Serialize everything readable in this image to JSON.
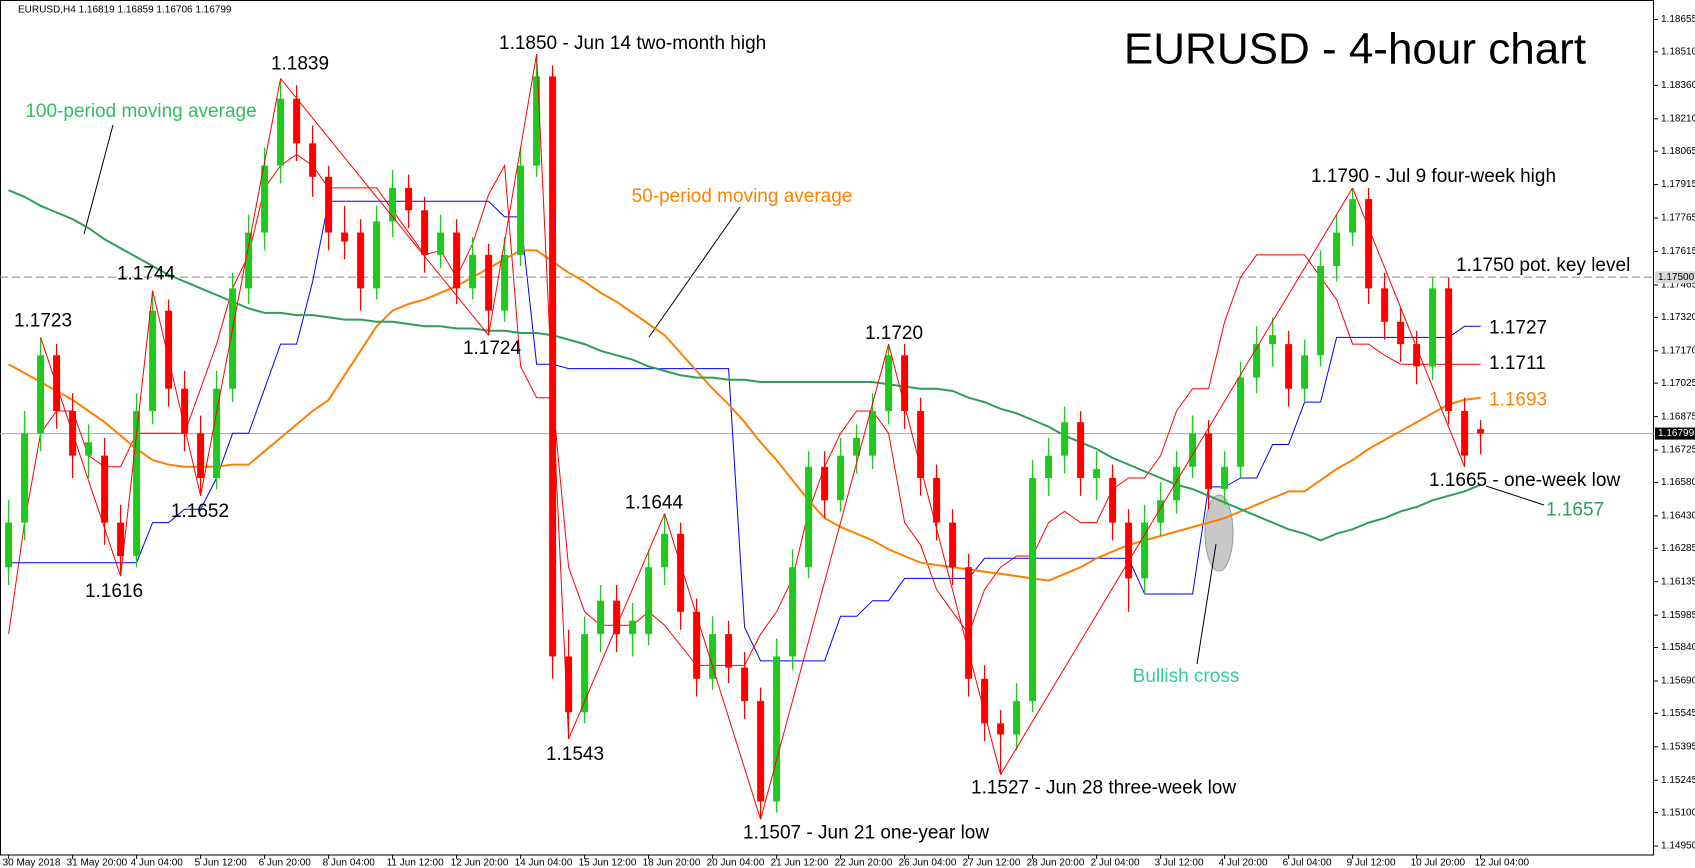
{
  "chart_data": {
    "type": "candlestick",
    "title": "EURUSD - 4-hour chart",
    "subtitle": "EURUSD,H4 1.16819 1.16859 1.16706 1.16799",
    "up_color": "#1ec81e",
    "down_color": "#ff0000",
    "categories": [
      "30 May 2018",
      null,
      null,
      null,
      "31 May 20:00",
      null,
      null,
      null,
      "4 Jun 04:00",
      null,
      null,
      null,
      "5 Jun 12:00",
      null,
      null,
      null,
      "6 Jun 20:00",
      null,
      null,
      null,
      "8 Jun 04:00",
      null,
      null,
      null,
      "11 Jun 12:00",
      null,
      null,
      null,
      "12 Jun 20:00",
      null,
      null,
      null,
      "14 Jun 04:00",
      null,
      null,
      null,
      "15 Jun 12:00",
      null,
      null,
      null,
      "18 Jun 20:00",
      null,
      null,
      null,
      "20 Jun 04:00",
      null,
      null,
      null,
      "21 Jun 12:00",
      null,
      null,
      null,
      "22 Jun 20:00",
      null,
      null,
      null,
      "26 Jun 04:00",
      null,
      null,
      null,
      "27 Jun 12:00",
      null,
      null,
      null,
      "28 Jun 20:00",
      null,
      null,
      null,
      "2 Jul 04:00",
      null,
      null,
      null,
      "3 Jul 12:00",
      null,
      null,
      null,
      "4 Jul 20:00",
      null,
      null,
      null,
      "6 Jul 04:00",
      null,
      null,
      null,
      "9 Jul 12:00",
      null,
      null,
      null,
      "10 Jul 20:00",
      null,
      null,
      null,
      "12 Jul 04:00"
    ],
    "ohlc": [
      [
        1.162,
        1.165,
        1.1612,
        1.164
      ],
      [
        1.164,
        1.169,
        1.1632,
        1.168
      ],
      [
        1.168,
        1.1723,
        1.1672,
        1.1715
      ],
      [
        1.1715,
        1.172,
        1.1682,
        1.169
      ],
      [
        1.169,
        1.1698,
        1.166,
        1.167
      ],
      [
        1.167,
        1.1684,
        1.166,
        1.1676
      ],
      [
        1.167,
        1.1678,
        1.163,
        1.164
      ],
      [
        1.164,
        1.1648,
        1.1616,
        1.1625
      ],
      [
        1.1625,
        1.1698,
        1.162,
        1.169
      ],
      [
        1.169,
        1.1744,
        1.1684,
        1.1735
      ],
      [
        1.1735,
        1.174,
        1.1692,
        1.17
      ],
      [
        1.17,
        1.1708,
        1.1672,
        1.168
      ],
      [
        1.168,
        1.1688,
        1.1652,
        1.166
      ],
      [
        1.166,
        1.1708,
        1.1655,
        1.17
      ],
      [
        1.17,
        1.1752,
        1.1694,
        1.1745
      ],
      [
        1.1745,
        1.1778,
        1.1738,
        1.177
      ],
      [
        1.177,
        1.1808,
        1.1762,
        1.18
      ],
      [
        1.18,
        1.1839,
        1.1792,
        1.183
      ],
      [
        1.183,
        1.1836,
        1.1802,
        1.181
      ],
      [
        1.181,
        1.1818,
        1.1786,
        1.1795
      ],
      [
        1.1795,
        1.18,
        1.1762,
        1.177
      ],
      [
        1.177,
        1.1782,
        1.1758,
        1.1766
      ],
      [
        1.177,
        1.1776,
        1.1735,
        1.1745
      ],
      [
        1.1745,
        1.1782,
        1.174,
        1.1775
      ],
      [
        1.1775,
        1.1798,
        1.1768,
        1.179
      ],
      [
        1.179,
        1.1796,
        1.1772,
        1.178
      ],
      [
        1.178,
        1.1786,
        1.1752,
        1.176
      ],
      [
        1.176,
        1.1778,
        1.1754,
        1.177
      ],
      [
        1.177,
        1.1776,
        1.1738,
        1.1745
      ],
      [
        1.1745,
        1.1768,
        1.174,
        1.176
      ],
      [
        1.176,
        1.1765,
        1.1724,
        1.1735
      ],
      [
        1.1735,
        1.1768,
        1.173,
        1.176
      ],
      [
        1.176,
        1.1808,
        1.1755,
        1.18
      ],
      [
        1.18,
        1.185,
        1.1795,
        1.184
      ],
      [
        1.184,
        1.1845,
        1.157,
        1.158
      ],
      [
        1.158,
        1.1592,
        1.1543,
        1.1555
      ],
      [
        1.1555,
        1.1598,
        1.155,
        1.159
      ],
      [
        1.159,
        1.1612,
        1.1582,
        1.1605
      ],
      [
        1.1605,
        1.1612,
        1.1582,
        1.159
      ],
      [
        1.159,
        1.1604,
        1.158,
        1.1596
      ],
      [
        1.159,
        1.1628,
        1.1585,
        1.162
      ],
      [
        1.162,
        1.1644,
        1.1612,
        1.1635
      ],
      [
        1.1635,
        1.164,
        1.1592,
        1.16
      ],
      [
        1.16,
        1.1606,
        1.1562,
        1.157
      ],
      [
        1.157,
        1.1598,
        1.1565,
        1.159
      ],
      [
        1.159,
        1.1596,
        1.1568,
        1.1575
      ],
      [
        1.1575,
        1.1582,
        1.1552,
        1.156
      ],
      [
        1.156,
        1.1566,
        1.1507,
        1.1515
      ],
      [
        1.1515,
        1.1588,
        1.151,
        1.158
      ],
      [
        1.158,
        1.1628,
        1.1574,
        1.162
      ],
      [
        1.162,
        1.1672,
        1.1615,
        1.1665
      ],
      [
        1.1665,
        1.1672,
        1.1642,
        1.165
      ],
      [
        1.165,
        1.1678,
        1.1645,
        1.167
      ],
      [
        1.167,
        1.1684,
        1.1662,
        1.1678
      ],
      [
        1.167,
        1.1698,
        1.1664,
        1.169
      ],
      [
        1.169,
        1.172,
        1.1684,
        1.1715
      ],
      [
        1.1715,
        1.172,
        1.1682,
        1.169
      ],
      [
        1.169,
        1.1696,
        1.1652,
        1.166
      ],
      [
        1.166,
        1.1666,
        1.1632,
        1.164
      ],
      [
        1.164,
        1.1646,
        1.1612,
        1.162
      ],
      [
        1.162,
        1.1626,
        1.1562,
        1.157
      ],
      [
        1.157,
        1.1576,
        1.1542,
        1.155
      ],
      [
        1.155,
        1.1556,
        1.1527,
        1.1545
      ],
      [
        1.1545,
        1.1568,
        1.1538,
        1.156
      ],
      [
        1.156,
        1.1668,
        1.1555,
        1.166
      ],
      [
        1.166,
        1.1678,
        1.1652,
        1.167
      ],
      [
        1.167,
        1.1692,
        1.1662,
        1.1685
      ],
      [
        1.1685,
        1.169,
        1.1652,
        1.166
      ],
      [
        1.166,
        1.1672,
        1.165,
        1.1664
      ],
      [
        1.166,
        1.1666,
        1.1632,
        1.164
      ],
      [
        1.164,
        1.1646,
        1.16,
        1.1615
      ],
      [
        1.1615,
        1.1648,
        1.1608,
        1.164
      ],
      [
        1.164,
        1.1658,
        1.1634,
        1.165
      ],
      [
        1.165,
        1.1672,
        1.1644,
        1.1665
      ],
      [
        1.1665,
        1.1688,
        1.166,
        1.168
      ],
      [
        1.168,
        1.1686,
        1.1646,
        1.1655
      ],
      [
        1.1655,
        1.1672,
        1.1648,
        1.1665
      ],
      [
        1.1665,
        1.1712,
        1.166,
        1.1705
      ],
      [
        1.1705,
        1.1728,
        1.1698,
        1.172
      ],
      [
        1.172,
        1.1732,
        1.171,
        1.1724
      ],
      [
        1.172,
        1.1726,
        1.1692,
        1.17
      ],
      [
        1.17,
        1.1722,
        1.1694,
        1.1715
      ],
      [
        1.1715,
        1.1762,
        1.171,
        1.1755
      ],
      [
        1.1755,
        1.1778,
        1.1748,
        1.177
      ],
      [
        1.177,
        1.179,
        1.1764,
        1.1785
      ],
      [
        1.1785,
        1.179,
        1.1738,
        1.1745
      ],
      [
        1.1745,
        1.1752,
        1.1722,
        1.173
      ],
      [
        1.173,
        1.1736,
        1.1712,
        1.172
      ],
      [
        1.172,
        1.1726,
        1.1702,
        1.171
      ],
      [
        1.171,
        1.175,
        1.1704,
        1.1745
      ],
      [
        1.1745,
        1.175,
        1.1684,
        1.169
      ],
      [
        1.169,
        1.1696,
        1.1665,
        1.167
      ],
      [
        1.16819,
        1.16859,
        1.16706,
        1.16799
      ]
    ],
    "series": [
      {
        "color": "#ff0000",
        "values": [
          1.159,
          1.164,
          1.168,
          1.169,
          1.169,
          1.167,
          1.1665,
          1.1665,
          1.168,
          1.168,
          1.168,
          1.168,
          1.17,
          1.172,
          1.1745,
          1.176,
          1.179,
          1.18,
          1.1805,
          1.18,
          1.179,
          1.179,
          1.179,
          1.179,
          1.178,
          1.177,
          1.176,
          1.1762,
          1.175,
          1.1765,
          1.1787,
          1.18,
          1.171,
          1.1696,
          1.1696,
          1.162,
          1.16,
          1.1594,
          1.1594,
          1.1594,
          1.16,
          1.1594,
          1.1585,
          1.1576,
          1.1576,
          1.1576,
          1.1576,
          1.159,
          1.16,
          1.1615,
          1.1645,
          1.1665,
          1.168,
          1.169,
          1.169,
          1.168,
          1.164,
          1.163,
          1.161,
          1.16,
          1.159,
          1.161,
          1.162,
          1.1625,
          1.1625,
          1.164,
          1.1645,
          1.164,
          1.164,
          1.1655,
          1.166,
          1.166,
          1.167,
          1.169,
          1.17,
          1.17,
          1.173,
          1.175,
          1.176,
          1.176,
          1.176,
          1.176,
          1.175,
          1.174,
          1.172,
          1.172,
          1.1715,
          1.1711,
          1.1711,
          1.1711,
          1.1711,
          1.1711,
          1.1711
        ]
      },
      {
        "color": "#0000ff",
        "values": [
          1.1622,
          1.1622,
          1.1622,
          1.1622,
          1.1622,
          1.1622,
          1.1622,
          1.1622,
          1.1622,
          1.164,
          1.164,
          1.1646,
          1.1646,
          1.166,
          1.168,
          1.168,
          1.17,
          1.172,
          1.172,
          1.1748,
          1.1784,
          1.1784,
          1.1784,
          1.1784,
          1.1784,
          1.1784,
          1.1784,
          1.1784,
          1.1784,
          1.1784,
          1.1784,
          1.1777,
          1.1777,
          1.1711,
          1.1711,
          1.1709,
          1.1709,
          1.1709,
          1.1709,
          1.1709,
          1.1709,
          1.1709,
          1.1709,
          1.1709,
          1.1709,
          1.1709,
          1.1593,
          1.1578,
          1.1578,
          1.1578,
          1.1578,
          1.1578,
          1.1598,
          1.1598,
          1.1605,
          1.1605,
          1.1615,
          1.1615,
          1.1615,
          1.1615,
          1.1615,
          1.1624,
          1.1624,
          1.1624,
          1.1624,
          1.1624,
          1.1624,
          1.1624,
          1.1624,
          1.1624,
          1.1624,
          1.1608,
          1.1608,
          1.1608,
          1.1608,
          1.1656,
          1.1656,
          1.166,
          1.166,
          1.1675,
          1.1675,
          1.1694,
          1.1694,
          1.1723,
          1.1723,
          1.1723,
          1.1723,
          1.1723,
          1.1723,
          1.1723,
          1.1723,
          1.1728,
          1.1728
        ]
      },
      {
        "color": "#ff8000",
        "values": [
          1.1711,
          1.1707,
          1.1703,
          1.1699,
          1.1695,
          1.169,
          1.1685,
          1.1679,
          1.1673,
          1.1668,
          1.1666,
          1.1665,
          1.1665,
          1.1665,
          1.1666,
          1.1666,
          1.1672,
          1.1678,
          1.1684,
          1.169,
          1.1695,
          1.1706,
          1.1717,
          1.1728,
          1.1735,
          1.1738,
          1.174,
          1.1743,
          1.1746,
          1.175,
          1.1754,
          1.1758,
          1.1762,
          1.1762,
          1.1757,
          1.1752,
          1.1748,
          1.1743,
          1.1739,
          1.1734,
          1.1729,
          1.1724,
          1.1716,
          1.1708,
          1.17,
          1.1693,
          1.1685,
          1.1676,
          1.1668,
          1.1659,
          1.165,
          1.1642,
          1.1638,
          1.1635,
          1.1632,
          1.1628,
          1.1625,
          1.1622,
          1.1621,
          1.162,
          1.1619,
          1.1618,
          1.1617,
          1.1616,
          1.1615,
          1.1614,
          1.1617,
          1.162,
          1.1624,
          1.1627,
          1.163,
          1.1632,
          1.1634,
          1.1636,
          1.1638,
          1.164,
          1.1642,
          1.1645,
          1.1648,
          1.1651,
          1.1654,
          1.1654,
          1.1659,
          1.1664,
          1.1668,
          1.1673,
          1.1677,
          1.1681,
          1.1685,
          1.1689,
          1.1693,
          1.1695,
          1.1696
        ]
      },
      {
        "color": "#2e9e5b",
        "values": [
          1.1789,
          1.1786,
          1.1782,
          1.1779,
          1.1776,
          1.1772,
          1.1767,
          1.1763,
          1.1759,
          1.1755,
          1.1751,
          1.1748,
          1.1745,
          1.1742,
          1.1739,
          1.1736,
          1.1734,
          1.1734,
          1.1733,
          1.1733,
          1.1732,
          1.1731,
          1.1731,
          1.173,
          1.173,
          1.1729,
          1.1728,
          1.1728,
          1.1727,
          1.1727,
          1.1726,
          1.1726,
          1.1725,
          1.1725,
          1.1724,
          1.1722,
          1.172,
          1.1717,
          1.1715,
          1.1713,
          1.171,
          1.1708,
          1.1706,
          1.1705,
          1.1705,
          1.1704,
          1.1704,
          1.1703,
          1.1703,
          1.1703,
          1.1703,
          1.1703,
          1.1703,
          1.1703,
          1.1703,
          1.1702,
          1.1701,
          1.17,
          1.17,
          1.1699,
          1.1696,
          1.1694,
          1.1691,
          1.1689,
          1.1686,
          1.1683,
          1.1679,
          1.1676,
          1.1673,
          1.1669,
          1.1666,
          1.1663,
          1.166,
          1.1657,
          1.1655,
          1.1652,
          1.1649,
          1.1646,
          1.1643,
          1.164,
          1.1637,
          1.1635,
          1.1632,
          1.1635,
          1.1637,
          1.164,
          1.1642,
          1.1645,
          1.1647,
          1.165,
          1.1652,
          1.1654,
          1.1657
        ]
      }
    ],
    "ylim": [
      1.1491,
      1.1872
    ],
    "yticks": [
      {
        "value": 1.18655,
        "label": "1.18655"
      },
      {
        "value": 1.1851,
        "label": "1.18510"
      },
      {
        "value": 1.1836,
        "label": "1.18360"
      },
      {
        "value": 1.1821,
        "label": "1.18210"
      },
      {
        "value": 1.18065,
        "label": "1.18065"
      },
      {
        "value": 1.17915,
        "label": "1.17915"
      },
      {
        "value": 1.17765,
        "label": "1.17765"
      },
      {
        "value": 1.17615,
        "label": "1.17615"
      },
      {
        "value": 1.17465,
        "label": "1.17465"
      },
      {
        "value": 1.1732,
        "label": "1.17320"
      },
      {
        "value": 1.1717,
        "label": "1.17170"
      },
      {
        "value": 1.17025,
        "label": "1.17025"
      },
      {
        "value": 1.16875,
        "label": "1.16875"
      },
      {
        "value": 1.16725,
        "label": "1.16725"
      },
      {
        "value": 1.1658,
        "label": "1.16580"
      },
      {
        "value": 1.1643,
        "label": "1.16430"
      },
      {
        "value": 1.16285,
        "label": "1.16285"
      },
      {
        "value": 1.16135,
        "label": "1.16135"
      },
      {
        "value": 1.15985,
        "label": "1.15985"
      },
      {
        "value": 1.1584,
        "label": "1.15840"
      },
      {
        "value": 1.1569,
        "label": "1.15690"
      },
      {
        "value": 1.15545,
        "label": "1.15545"
      },
      {
        "value": 1.15395,
        "label": "1.15395"
      },
      {
        "value": 1.15245,
        "label": "1.15245"
      },
      {
        "value": 1.151,
        "label": "1.15100"
      },
      {
        "value": 1.1495,
        "label": "1.14950"
      }
    ],
    "price_tags": [
      {
        "value": 1.175,
        "label": "1.17500"
      },
      {
        "value": 1.16799,
        "label": "1.16799"
      }
    ],
    "annotations": [
      {
        "text": "1.1723",
        "value": 1.1723
      },
      {
        "text": "1.1616",
        "value": 1.1616
      },
      {
        "text": "1.1744",
        "value": 1.1744
      },
      {
        "text": "1.1652",
        "value": 1.1652
      },
      {
        "text": "1.1839",
        "value": 1.1839
      },
      {
        "text": "1.1724",
        "value": 1.1724
      },
      {
        "text": "1.1850 - Jun 14 two-month high",
        "value": 1.185
      },
      {
        "text": "1.1543",
        "value": 1.1543
      },
      {
        "text": "1.1644",
        "value": 1.1644
      },
      {
        "text": "1.1507 - Jun 21 one-year low",
        "value": 1.1507
      },
      {
        "text": "1.1720",
        "value": 1.172
      },
      {
        "text": "1.1527 - Jun 28 three-week low",
        "value": 1.1527
      },
      {
        "text": "1.1790 - Jul 9 four-week high",
        "value": 1.179
      },
      {
        "text": "1.1750 pot. key level",
        "value": 1.175
      },
      {
        "text": "1.1727",
        "value": 1.1727
      },
      {
        "text": "1.1711",
        "value": 1.1711
      },
      {
        "text": "1.1693",
        "value": 1.1693
      },
      {
        "text": "1.1665 - one-week low",
        "value": 1.1665
      },
      {
        "text": "1.1657",
        "value": 1.1657
      },
      {
        "text": "100-period moving average"
      },
      {
        "text": "50-period moving average"
      },
      {
        "text": "Bullish cross"
      }
    ]
  }
}
